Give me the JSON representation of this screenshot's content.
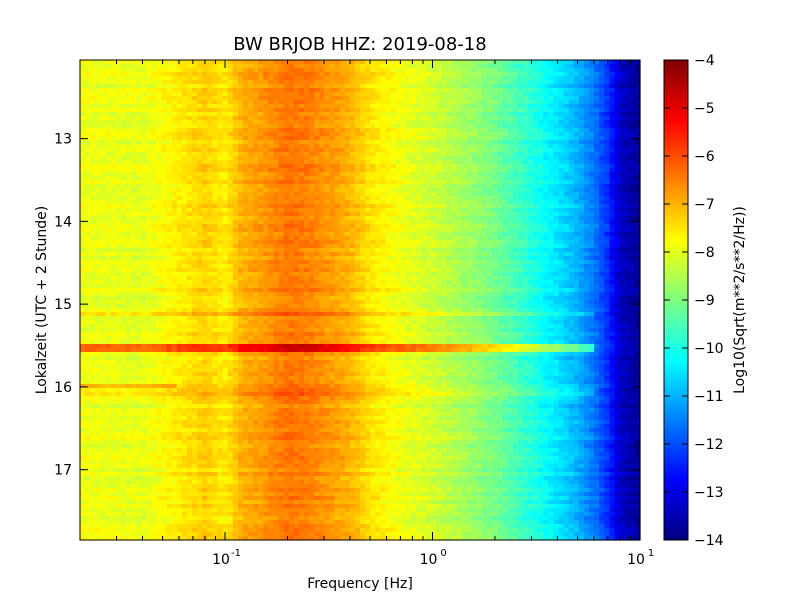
{
  "chart_data": {
    "type": "heatmap",
    "title": "BW BRJOB HHZ: 2019-08-18",
    "xlabel": "Frequency [Hz]",
    "ylabel": "Lokalzeit (UTC + 2 Stunde)",
    "x_scale": "log",
    "xlim": [
      0.02,
      10
    ],
    "ylim": [
      12.05,
      17.85
    ],
    "y_inverted": true,
    "x_ticks": [
      {
        "value": 0.1,
        "base": "10",
        "exp": "-1"
      },
      {
        "value": 1,
        "base": "10",
        "exp": "0"
      },
      {
        "value": 10,
        "base": "10",
        "exp": "1"
      }
    ],
    "y_ticks": [
      13,
      14,
      15,
      16,
      17
    ],
    "colorbar": {
      "label": "Log10(Sqrt(m**2/s**2/Hz))",
      "range": [
        -14,
        -4
      ],
      "ticks": [
        "−4",
        "−5",
        "−6",
        "−7",
        "−8",
        "−9",
        "−10",
        "−11",
        "−12",
        "−13",
        "−14"
      ],
      "colormap": "jet"
    },
    "spectrum_profile": {
      "frequency": [
        0.02,
        0.04,
        0.06,
        0.08,
        0.1,
        0.12,
        0.15,
        0.2,
        0.25,
        0.3,
        0.4,
        0.5,
        0.7,
        1.0,
        1.5,
        2.0,
        3.0,
        4.0,
        5.0,
        6.0,
        7.0,
        8.0,
        10.0
      ],
      "level": [
        -7.9,
        -8.0,
        -7.6,
        -7.3,
        -7.6,
        -7.0,
        -6.8,
        -6.4,
        -6.5,
        -6.7,
        -7.0,
        -7.5,
        -7.9,
        -8.2,
        -8.7,
        -9.1,
        -9.9,
        -10.5,
        -11.0,
        -11.6,
        -12.3,
        -13.3,
        -13.8
      ]
    },
    "events": [
      {
        "time": 15.13,
        "strength": 0.6,
        "fmax": 6.0
      },
      {
        "time": 15.53,
        "strength": 1.6,
        "fmax": 6.0
      },
      {
        "time": 15.98,
        "strength": 0.7,
        "fmax": 0.06
      },
      {
        "time": 16.05,
        "strength": 0.4,
        "fmax": 6.0
      }
    ]
  }
}
